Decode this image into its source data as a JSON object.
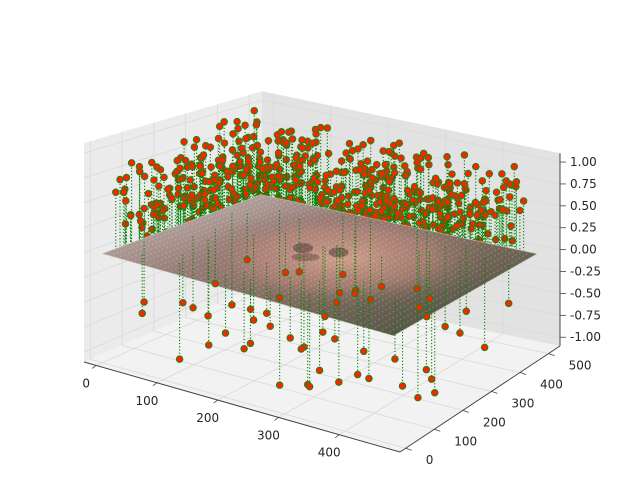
{
  "chart_data": {
    "type": "scatter",
    "subtype": "3d-stem",
    "title": "",
    "xlabel": "",
    "ylabel": "",
    "zlabel": "",
    "xlim": [
      -20,
      500
    ],
    "ylim": [
      -20,
      540
    ],
    "zlim": [
      -1.1,
      1.1
    ],
    "x_ticks": [
      "0",
      "100",
      "200",
      "300",
      "400"
    ],
    "y_ticks": [
      "0",
      "100",
      "200",
      "300",
      "400",
      "500"
    ],
    "z_ticks": [
      "-1.00",
      "-0.75",
      "-0.50",
      "-0.25",
      "0.00",
      "0.25",
      "0.50",
      "0.75",
      "1.00"
    ],
    "grid": true,
    "stem_color": "#008000",
    "stem_style": "dotted",
    "marker_face_color": "#ff2200",
    "marker_edge_color": "#2e7d12",
    "surface": {
      "description_z": 0.0,
      "x_range": [
        0,
        480
      ],
      "y_range": [
        0,
        500
      ],
      "texture": "photo of a face (rgb image) mapped on plane z = 0"
    },
    "points_summary": {
      "x_range": [
        0,
        480
      ],
      "y_range": [
        0,
        500
      ],
      "z_range": [
        -1,
        1
      ]
    }
  },
  "colors": {
    "pane_left": "#ebebeb",
    "pane_right": "#e2e2e2",
    "pane_floor": "#f2f2f2",
    "grid": "#d9d9d9",
    "axis": "#444444"
  }
}
